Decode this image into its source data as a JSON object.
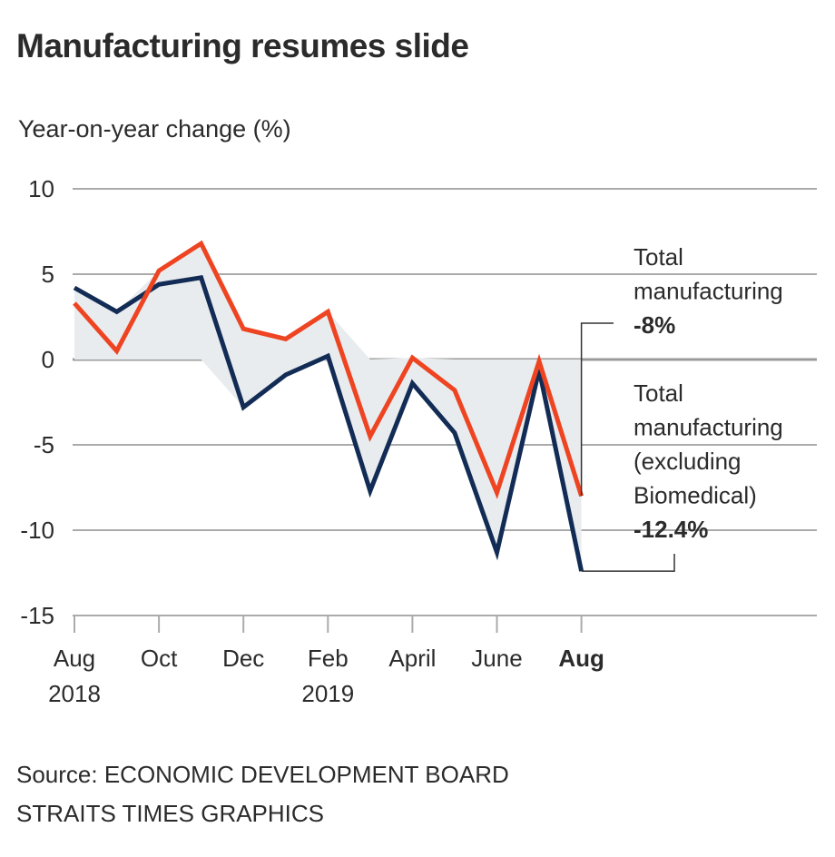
{
  "title": "Manufacturing resumes slide",
  "colors": {
    "total": "#EE4422",
    "excl_biomedical": "#122C55",
    "fill": "#E9ECEE",
    "grid": "#ABABAB",
    "zero_line": "#9A9A9A",
    "callout": "#333333",
    "text": "#2B2B2B"
  },
  "chart_data": {
    "type": "line",
    "title": "Manufacturing resumes slide",
    "ylabel": "Year-on-year change (%)",
    "xlabel": "",
    "ylim": [
      -15,
      10
    ],
    "yticks": [
      10,
      5,
      0,
      -5,
      -10,
      -15
    ],
    "grid": true,
    "x": [
      "Aug 2018",
      "Sep 2018",
      "Oct 2018",
      "Nov 2018",
      "Dec 2018",
      "Jan 2019",
      "Feb 2019",
      "Mar 2019",
      "Apr 2019",
      "May 2019",
      "Jun 2019",
      "Jul 2019",
      "Aug 2019"
    ],
    "xtick_labels": [
      {
        "index": 0,
        "line1": "Aug",
        "line2": "2018",
        "bold": false
      },
      {
        "index": 2,
        "line1": "Oct",
        "line2": "",
        "bold": false
      },
      {
        "index": 4,
        "line1": "Dec",
        "line2": "",
        "bold": false
      },
      {
        "index": 6,
        "line1": "Feb",
        "line2": "2019",
        "bold": false
      },
      {
        "index": 8,
        "line1": "April",
        "line2": "",
        "bold": false
      },
      {
        "index": 10,
        "line1": "June",
        "line2": "",
        "bold": false
      },
      {
        "index": 12,
        "line1": "Aug",
        "line2": "",
        "bold": true
      }
    ],
    "series": [
      {
        "name": "Total manufacturing",
        "key": "total",
        "values": [
          3.3,
          0.5,
          5.2,
          6.8,
          1.8,
          1.2,
          2.8,
          -4.5,
          0.1,
          -1.8,
          -7.8,
          -0.1,
          -8.0
        ]
      },
      {
        "name": "Total manufacturing (excluding Biomedical)",
        "key": "excl_biomedical",
        "values": [
          4.2,
          2.8,
          4.4,
          4.8,
          -2.8,
          -0.9,
          0.2,
          -7.7,
          -1.4,
          -4.3,
          -11.3,
          -0.6,
          -12.4
        ]
      }
    ],
    "annotations": [
      {
        "series": "total",
        "lines": [
          "Total",
          "manufacturing"
        ],
        "value_label": "-8%"
      },
      {
        "series": "excl_biomedical",
        "lines": [
          "Total",
          "manufacturing",
          "(excluding",
          "Biomedical)"
        ],
        "value_label": "-12.4%"
      }
    ],
    "legend": "direct-labels-right"
  },
  "footer": {
    "source": "Source: ECONOMIC DEVELOPMENT BOARD",
    "credit": "STRAITS TIMES GRAPHICS"
  }
}
